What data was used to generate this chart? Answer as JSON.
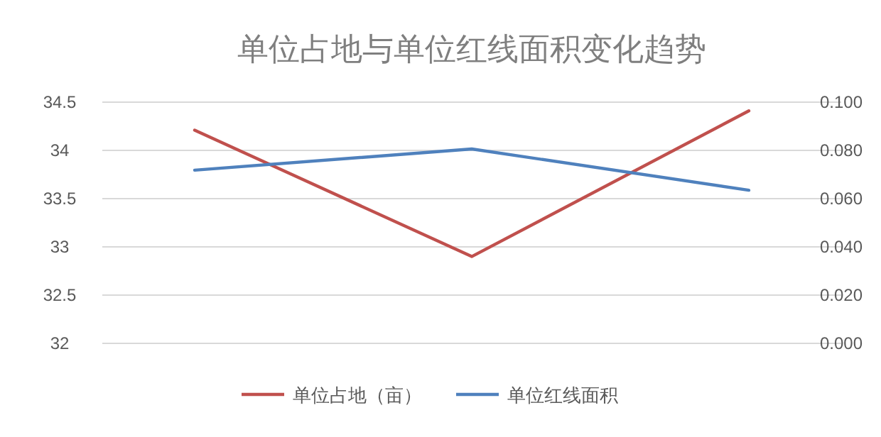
{
  "chart_data": {
    "type": "line",
    "title": "单位占地与单位红线面积变化趋势",
    "categories": [
      null,
      null,
      null
    ],
    "series": [
      {
        "name": "单位占地（亩）",
        "color": "#c0504d",
        "values": [
          34.21,
          32.9,
          34.41
        ]
      },
      {
        "name": "单位红线面积",
        "color": "#4f81bd",
        "values": [
          0.0718,
          0.0806,
          0.0635
        ],
        "axis": "y2"
      }
    ],
    "ylim": [
      32,
      34.5
    ],
    "yticks": [
      32,
      32.5,
      33,
      33.5,
      34,
      34.5
    ],
    "y2lim": [
      0,
      0.1
    ],
    "y2ticks": [
      {
        "value": 0,
        "label": "0.000"
      },
      {
        "value": 0.02,
        "label": "0.020"
      },
      {
        "value": 0.04,
        "label": "0.040"
      },
      {
        "value": 0.06,
        "label": "0.060"
      },
      {
        "value": 0.08,
        "label": "0.080"
      },
      {
        "value": 0.1,
        "label": "0.100"
      }
    ],
    "grid": "y",
    "legend": "bottom"
  }
}
